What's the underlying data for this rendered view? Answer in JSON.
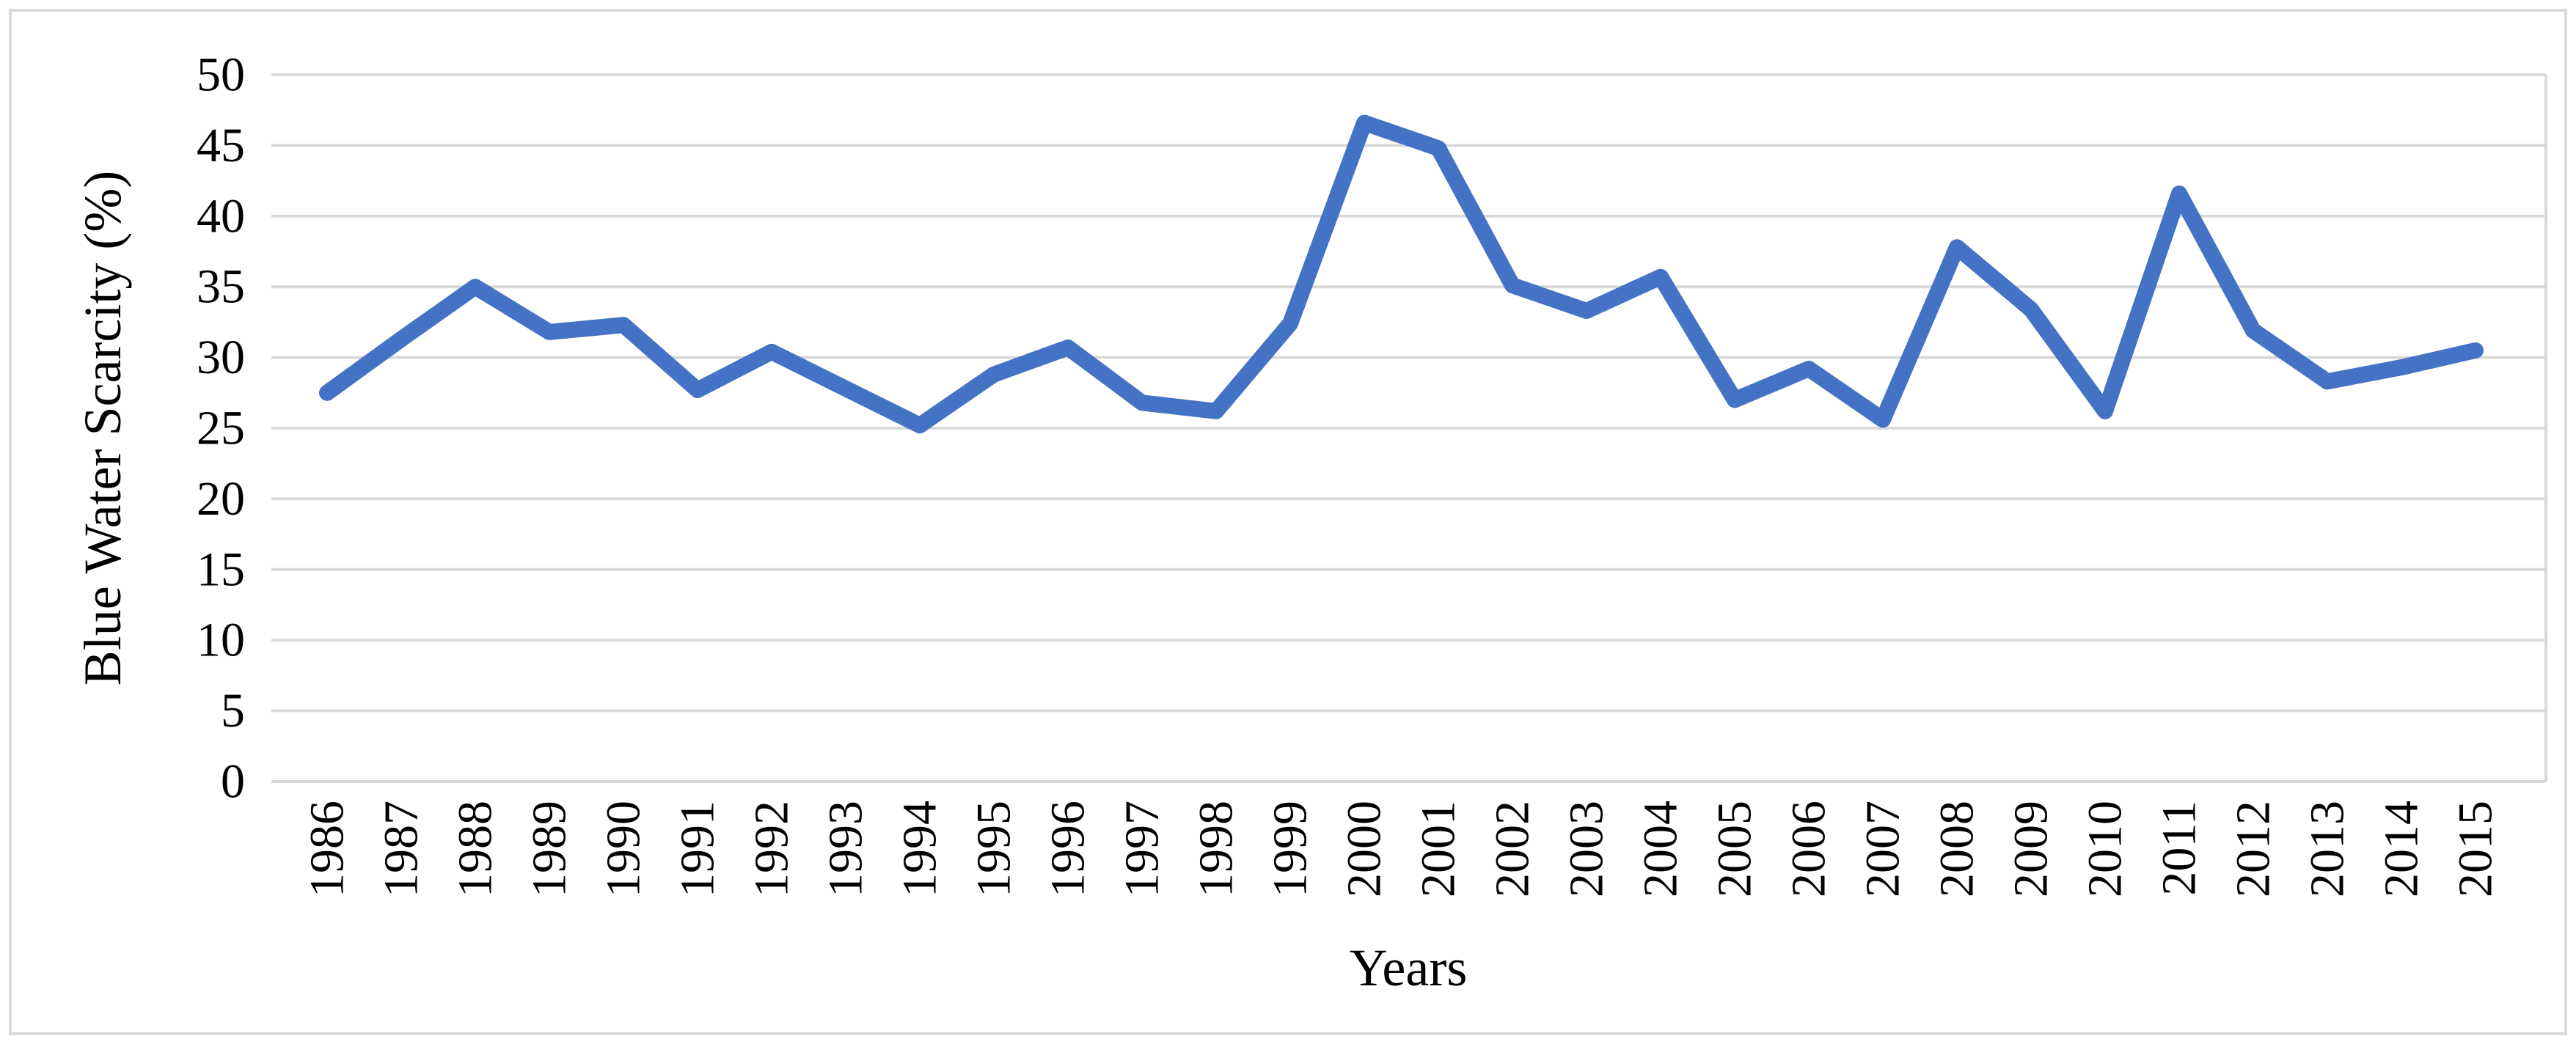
{
  "figure": {
    "background_color": "#ffffff",
    "border_color": "#d9d9d9"
  },
  "chart_data": {
    "type": "line",
    "title": "",
    "xlabel": "Years",
    "ylabel": "Blue Water Scarcity (%)",
    "categories": [
      "1986",
      "1987",
      "1988",
      "1989",
      "1990",
      "1991",
      "1992",
      "1993",
      "1994",
      "1995",
      "1996",
      "1997",
      "1998",
      "1999",
      "2000",
      "2001",
      "2002",
      "2003",
      "2004",
      "2005",
      "2006",
      "2007",
      "2008",
      "2009",
      "2010",
      "2011",
      "2012",
      "2013",
      "2014",
      "2015"
    ],
    "series": [
      {
        "name": "Blue Water Scarcity",
        "color": "#4472c4",
        "values": [
          27.5,
          31.3,
          35.0,
          31.8,
          32.3,
          27.7,
          30.4,
          27.8,
          25.2,
          28.8,
          30.7,
          26.8,
          26.2,
          32.4,
          46.6,
          44.8,
          35.1,
          33.3,
          35.7,
          27.0,
          29.2,
          25.6,
          37.8,
          33.4,
          26.2,
          41.6,
          31.9,
          28.3,
          29.3,
          30.5
        ]
      }
    ],
    "ylim": [
      0,
      50
    ],
    "ytick_step": 5,
    "yticks": [
      "0",
      "5",
      "10",
      "15",
      "20",
      "25",
      "30",
      "35",
      "40",
      "45",
      "50"
    ],
    "grid": "horizontal",
    "gridline_color": "#d9d9d9",
    "text_color": "#000000",
    "legend_position": "none",
    "x_label_rotation_deg": -90
  }
}
